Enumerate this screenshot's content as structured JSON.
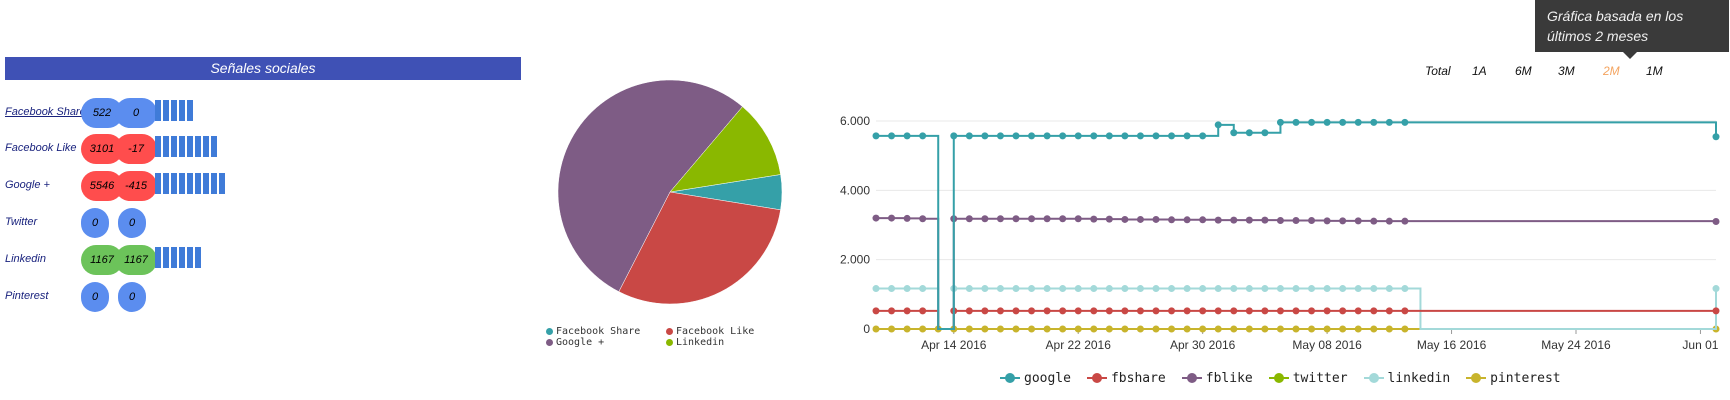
{
  "social": {
    "title": "Señales sociales",
    "rows": [
      {
        "label": "Facebook Share",
        "v1": "522",
        "v2": "0",
        "color": "#5b8def",
        "bars": 5,
        "link": true
      },
      {
        "label": "Facebook Like",
        "v1": "3101",
        "v2": "-17",
        "color": "#ff4d4d",
        "bars": 8,
        "link": false
      },
      {
        "label": "Google +",
        "v1": "5546",
        "v2": "-415",
        "color": "#ff4d4d",
        "bars": 9,
        "link": false
      },
      {
        "label": "Twitter",
        "v1": "0",
        "v2": "0",
        "color": "#5b8def",
        "bars": 0,
        "link": false
      },
      {
        "label": "Linkedin",
        "v1": "1167",
        "v2": "1167",
        "color": "#6cc35a",
        "bars": 6,
        "link": false
      },
      {
        "label": "Pinterest",
        "v1": "0",
        "v2": "0",
        "color": "#5b8def",
        "bars": 0,
        "link": false
      }
    ]
  },
  "tooltip": {
    "text": "Gráfica basada en los últimos 2 meses"
  },
  "range_buttons": [
    "Total",
    "1A",
    "6M",
    "3M",
    "2M",
    "1M"
  ],
  "active_range": "2M",
  "chart_data": [
    {
      "type": "pie",
      "slices": [
        {
          "name": "Facebook Share",
          "value": 522,
          "color": "#35a0a8"
        },
        {
          "name": "Facebook Like",
          "value": 3101,
          "color": "#c94845"
        },
        {
          "name": "Google +",
          "value": 5546,
          "color": "#7e5c85"
        },
        {
          "name": "Linkedin",
          "value": 1167,
          "color": "#8ab800"
        }
      ],
      "legend": [
        "Facebook Share",
        "Facebook Like",
        "Google +",
        "Linkedin"
      ],
      "legend_placement": "bottom"
    },
    {
      "type": "line",
      "x_start": "2016-04-09",
      "x_end": "2016-06-02",
      "xticks": [
        "Apr 14 2016",
        "Apr 22 2016",
        "Apr 30 2016",
        "May 08 2016",
        "May 16 2016",
        "May 24 2016",
        "Jun 01"
      ],
      "xtick_dates": [
        "2016-04-14",
        "2016-04-22",
        "2016-04-30",
        "2016-05-08",
        "2016-05-16",
        "2016-05-24",
        "2016-06-01"
      ],
      "yticks": [
        "0",
        "2.000",
        "4.000",
        "6.000"
      ],
      "ytick_values": [
        0,
        2000,
        4000,
        6000
      ],
      "ylim": [
        0,
        6200
      ],
      "grid": true,
      "legend_placement": "bottom",
      "series": [
        {
          "name": "google",
          "color": "#35a0a8",
          "points": [
            [
              "2016-04-09",
              5570
            ],
            [
              "2016-04-10",
              5570
            ],
            [
              "2016-04-11",
              5570
            ],
            [
              "2016-04-12",
              5570
            ],
            [
              "2016-04-13",
              0
            ],
            [
              "2016-04-14",
              5570
            ],
            [
              "2016-04-15",
              5570
            ],
            [
              "2016-04-16",
              5570
            ],
            [
              "2016-04-17",
              5570
            ],
            [
              "2016-04-18",
              5570
            ],
            [
              "2016-04-19",
              5570
            ],
            [
              "2016-04-20",
              5570
            ],
            [
              "2016-04-21",
              5570
            ],
            [
              "2016-04-22",
              5570
            ],
            [
              "2016-04-23",
              5570
            ],
            [
              "2016-04-24",
              5570
            ],
            [
              "2016-04-25",
              5570
            ],
            [
              "2016-04-26",
              5570
            ],
            [
              "2016-04-27",
              5570
            ],
            [
              "2016-04-28",
              5570
            ],
            [
              "2016-04-29",
              5570
            ],
            [
              "2016-04-30",
              5570
            ],
            [
              "2016-05-01",
              5890
            ],
            [
              "2016-05-02",
              5660
            ],
            [
              "2016-05-03",
              5660
            ],
            [
              "2016-05-04",
              5660
            ],
            [
              "2016-05-05",
              5960
            ],
            [
              "2016-05-06",
              5960
            ],
            [
              "2016-05-07",
              5960
            ],
            [
              "2016-05-08",
              5960
            ],
            [
              "2016-05-09",
              5960
            ],
            [
              "2016-05-10",
              5960
            ],
            [
              "2016-05-11",
              5960
            ],
            [
              "2016-05-12",
              5960
            ],
            [
              "2016-05-13",
              5960
            ],
            [
              "2016-06-02",
              5546
            ]
          ]
        },
        {
          "name": "fbshare",
          "color": "#c94845",
          "points": [
            [
              "2016-04-09",
              522
            ],
            [
              "2016-04-10",
              522
            ],
            [
              "2016-04-11",
              522
            ],
            [
              "2016-04-12",
              522
            ],
            [
              "2016-04-13",
              0
            ],
            [
              "2016-04-14",
              522
            ],
            [
              "2016-04-15",
              522
            ],
            [
              "2016-04-16",
              522
            ],
            [
              "2016-04-17",
              522
            ],
            [
              "2016-04-18",
              522
            ],
            [
              "2016-04-19",
              522
            ],
            [
              "2016-04-20",
              522
            ],
            [
              "2016-04-21",
              522
            ],
            [
              "2016-04-22",
              522
            ],
            [
              "2016-04-23",
              522
            ],
            [
              "2016-04-24",
              522
            ],
            [
              "2016-04-25",
              522
            ],
            [
              "2016-04-26",
              522
            ],
            [
              "2016-04-27",
              522
            ],
            [
              "2016-04-28",
              522
            ],
            [
              "2016-04-29",
              522
            ],
            [
              "2016-04-30",
              522
            ],
            [
              "2016-05-01",
              522
            ],
            [
              "2016-05-02",
              522
            ],
            [
              "2016-05-03",
              522
            ],
            [
              "2016-05-04",
              522
            ],
            [
              "2016-05-05",
              522
            ],
            [
              "2016-05-06",
              522
            ],
            [
              "2016-05-07",
              522
            ],
            [
              "2016-05-08",
              522
            ],
            [
              "2016-05-09",
              522
            ],
            [
              "2016-05-10",
              522
            ],
            [
              "2016-05-11",
              522
            ],
            [
              "2016-05-12",
              522
            ],
            [
              "2016-05-13",
              522
            ],
            [
              "2016-06-02",
              522
            ]
          ]
        },
        {
          "name": "fblike",
          "color": "#7e5c85",
          "points": [
            [
              "2016-04-09",
              3200
            ],
            [
              "2016-04-10",
              3200
            ],
            [
              "2016-04-11",
              3190
            ],
            [
              "2016-04-12",
              3180
            ],
            [
              "2016-04-13",
              0
            ],
            [
              "2016-04-14",
              3180
            ],
            [
              "2016-04-15",
              3180
            ],
            [
              "2016-04-16",
              3180
            ],
            [
              "2016-04-17",
              3180
            ],
            [
              "2016-04-18",
              3180
            ],
            [
              "2016-04-19",
              3180
            ],
            [
              "2016-04-20",
              3180
            ],
            [
              "2016-04-21",
              3180
            ],
            [
              "2016-04-22",
              3180
            ],
            [
              "2016-04-23",
              3170
            ],
            [
              "2016-04-24",
              3170
            ],
            [
              "2016-04-25",
              3160
            ],
            [
              "2016-04-26",
              3160
            ],
            [
              "2016-04-27",
              3160
            ],
            [
              "2016-04-28",
              3150
            ],
            [
              "2016-04-29",
              3150
            ],
            [
              "2016-04-30",
              3150
            ],
            [
              "2016-05-01",
              3140
            ],
            [
              "2016-05-02",
              3140
            ],
            [
              "2016-05-03",
              3140
            ],
            [
              "2016-05-04",
              3140
            ],
            [
              "2016-05-05",
              3130
            ],
            [
              "2016-05-06",
              3130
            ],
            [
              "2016-05-07",
              3130
            ],
            [
              "2016-05-08",
              3120
            ],
            [
              "2016-05-09",
              3120
            ],
            [
              "2016-05-10",
              3120
            ],
            [
              "2016-05-11",
              3110
            ],
            [
              "2016-05-12",
              3110
            ],
            [
              "2016-05-13",
              3110
            ],
            [
              "2016-06-02",
              3101
            ]
          ]
        },
        {
          "name": "twitter",
          "color": "#8ab800",
          "points": []
        },
        {
          "name": "linkedin",
          "color": "#a3d9d9",
          "points": [
            [
              "2016-04-09",
              1167
            ],
            [
              "2016-04-10",
              1167
            ],
            [
              "2016-04-11",
              1167
            ],
            [
              "2016-04-12",
              1167
            ],
            [
              "2016-04-13",
              0
            ],
            [
              "2016-04-14",
              1167
            ],
            [
              "2016-04-15",
              1167
            ],
            [
              "2016-04-16",
              1167
            ],
            [
              "2016-04-17",
              1167
            ],
            [
              "2016-04-18",
              1167
            ],
            [
              "2016-04-19",
              1167
            ],
            [
              "2016-04-20",
              1167
            ],
            [
              "2016-04-21",
              1167
            ],
            [
              "2016-04-22",
              1167
            ],
            [
              "2016-04-23",
              1167
            ],
            [
              "2016-04-24",
              1167
            ],
            [
              "2016-04-25",
              1167
            ],
            [
              "2016-04-26",
              1167
            ],
            [
              "2016-04-27",
              1167
            ],
            [
              "2016-04-28",
              1167
            ],
            [
              "2016-04-29",
              1167
            ],
            [
              "2016-04-30",
              1167
            ],
            [
              "2016-05-01",
              1167
            ],
            [
              "2016-05-02",
              1167
            ],
            [
              "2016-05-03",
              1167
            ],
            [
              "2016-05-04",
              1167
            ],
            [
              "2016-05-05",
              1167
            ],
            [
              "2016-05-06",
              1167
            ],
            [
              "2016-05-07",
              1167
            ],
            [
              "2016-05-08",
              1167
            ],
            [
              "2016-05-09",
              1167
            ],
            [
              "2016-05-10",
              1167
            ],
            [
              "2016-05-11",
              1167
            ],
            [
              "2016-05-12",
              1167
            ],
            [
              "2016-05-13",
              1167
            ],
            [
              "2016-05-14",
              0
            ],
            [
              "2016-06-02",
              1167
            ]
          ]
        },
        {
          "name": "pinterest",
          "color": "#c8b42c",
          "points": [
            [
              "2016-04-09",
              0
            ],
            [
              "2016-04-10",
              0
            ],
            [
              "2016-04-11",
              0
            ],
            [
              "2016-04-12",
              0
            ],
            [
              "2016-04-13",
              0
            ],
            [
              "2016-04-14",
              0
            ],
            [
              "2016-04-15",
              0
            ],
            [
              "2016-04-16",
              0
            ],
            [
              "2016-04-17",
              0
            ],
            [
              "2016-04-18",
              0
            ],
            [
              "2016-04-19",
              0
            ],
            [
              "2016-04-20",
              0
            ],
            [
              "2016-04-21",
              0
            ],
            [
              "2016-04-22",
              0
            ],
            [
              "2016-04-23",
              0
            ],
            [
              "2016-04-24",
              0
            ],
            [
              "2016-04-25",
              0
            ],
            [
              "2016-04-26",
              0
            ],
            [
              "2016-04-27",
              0
            ],
            [
              "2016-04-28",
              0
            ],
            [
              "2016-04-29",
              0
            ],
            [
              "2016-04-30",
              0
            ],
            [
              "2016-05-01",
              0
            ],
            [
              "2016-05-02",
              0
            ],
            [
              "2016-05-03",
              0
            ],
            [
              "2016-05-04",
              0
            ],
            [
              "2016-05-05",
              0
            ],
            [
              "2016-05-06",
              0
            ],
            [
              "2016-05-07",
              0
            ],
            [
              "2016-05-08",
              0
            ],
            [
              "2016-05-09",
              0
            ],
            [
              "2016-05-10",
              0
            ],
            [
              "2016-05-11",
              0
            ],
            [
              "2016-05-12",
              0
            ],
            [
              "2016-05-13",
              0
            ],
            [
              "2016-06-02",
              0
            ]
          ]
        }
      ]
    }
  ]
}
